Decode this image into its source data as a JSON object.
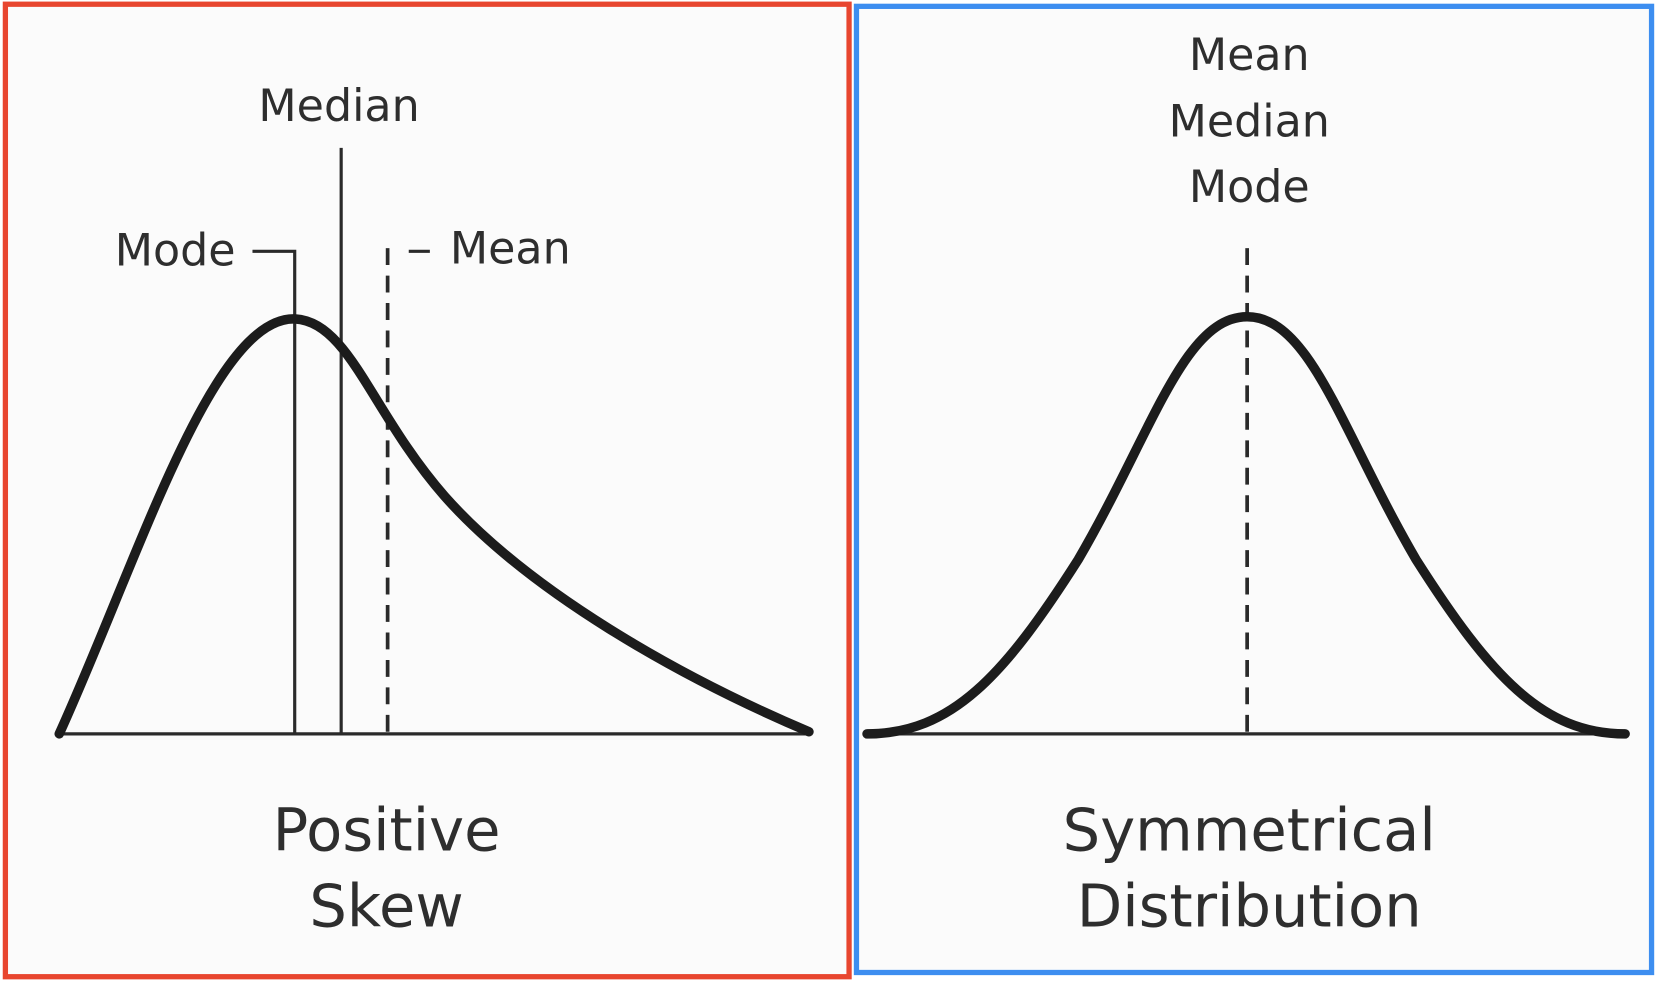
{
  "left": {
    "labels": {
      "median": "Median",
      "mode": "Mode",
      "mean": "Mean"
    },
    "caption": [
      "Positive",
      "Skew"
    ]
  },
  "right": {
    "labels": [
      "Mean",
      "Median",
      "Mode"
    ],
    "caption": [
      "Symmetrical",
      "Distribution"
    ]
  }
}
